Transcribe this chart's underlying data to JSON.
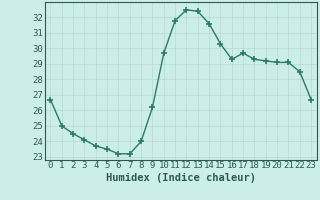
{
  "x": [
    0,
    1,
    2,
    3,
    4,
    5,
    6,
    7,
    8,
    9,
    10,
    11,
    12,
    13,
    14,
    15,
    16,
    17,
    18,
    19,
    20,
    21,
    22,
    23
  ],
  "y": [
    26.7,
    25.0,
    24.5,
    24.1,
    23.7,
    23.5,
    23.2,
    23.2,
    24.0,
    26.2,
    29.7,
    31.8,
    32.5,
    32.4,
    31.6,
    30.3,
    29.3,
    29.7,
    29.3,
    29.2,
    29.1,
    29.1,
    28.5,
    26.7
  ],
  "title": "",
  "xlabel": "Humidex (Indice chaleur)",
  "ylabel": "",
  "xlim": [
    -0.5,
    23.5
  ],
  "ylim": [
    22.8,
    33.0
  ],
  "yticks": [
    23,
    24,
    25,
    26,
    27,
    28,
    29,
    30,
    31,
    32
  ],
  "xticks": [
    0,
    1,
    2,
    3,
    4,
    5,
    6,
    7,
    8,
    9,
    10,
    11,
    12,
    13,
    14,
    15,
    16,
    17,
    18,
    19,
    20,
    21,
    22,
    23
  ],
  "line_color": "#2d7a6a",
  "marker_color": "#2d7a6a",
  "bg_color": "#cceee8",
  "grid_color": "#b8d8d0",
  "font_color": "#2d5a52",
  "xlabel_fontsize": 7.5,
  "tick_fontsize": 6.5,
  "linewidth": 1.0,
  "markersize": 4
}
